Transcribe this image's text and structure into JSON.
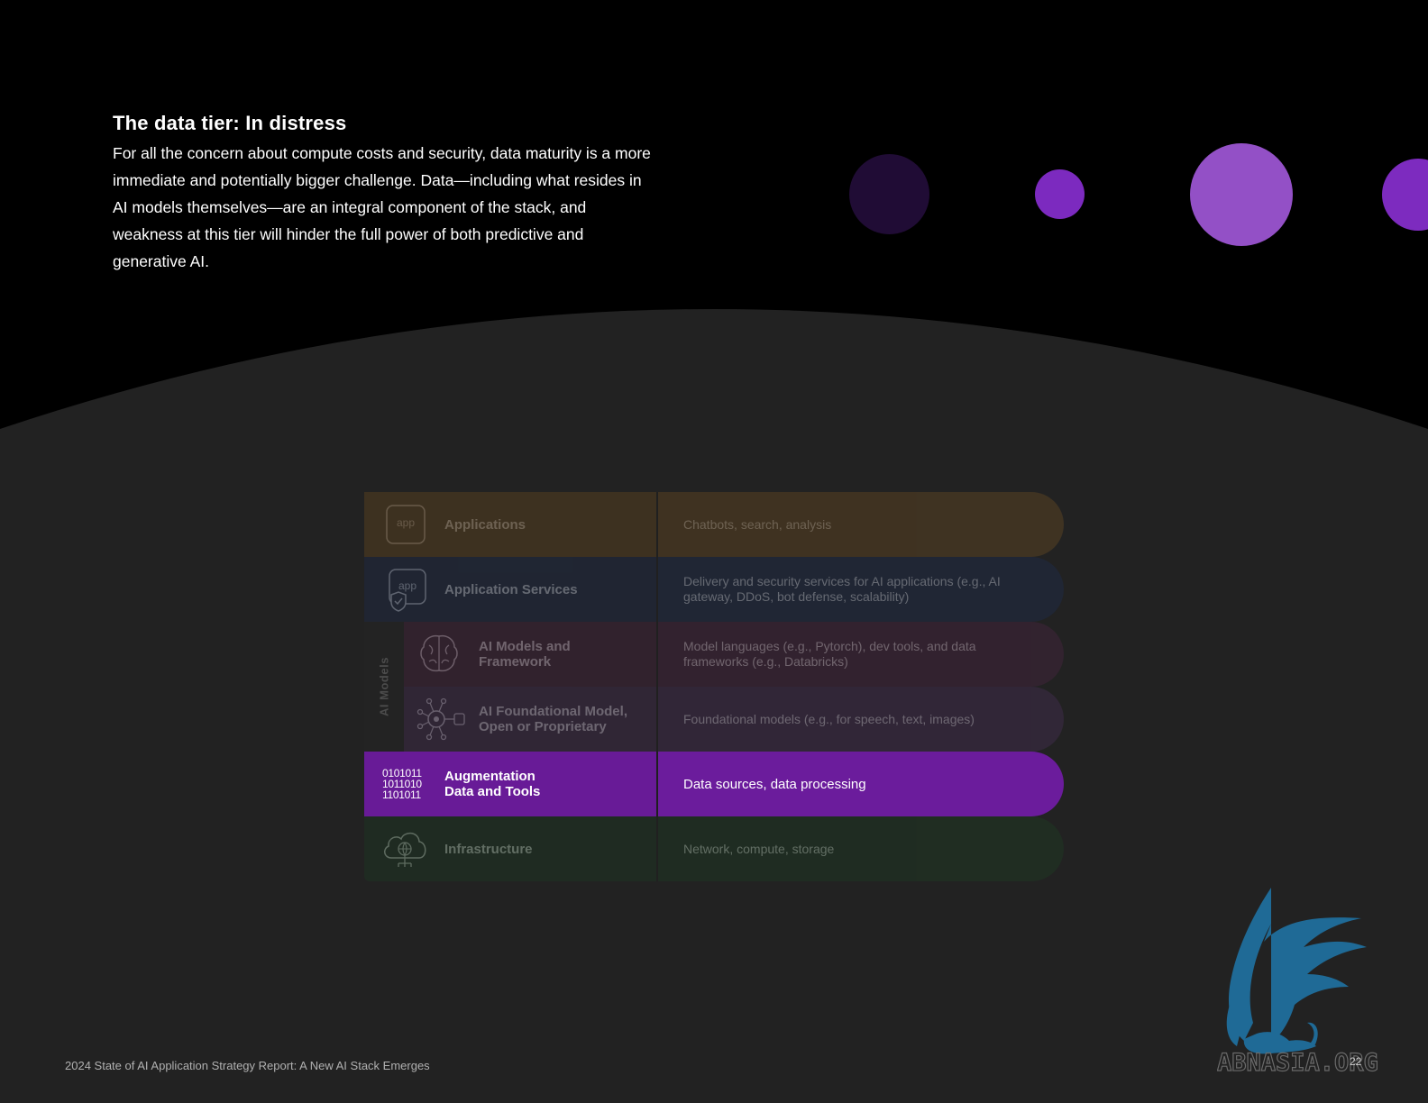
{
  "section": {
    "title": "The data tier: In distress",
    "paragraph": "For all the concern about compute costs and security, data maturity is a more immediate and potentially bigger challenge. Data—including what resides in AI models themselves—are an integral component of the stack, and weakness at this tier will hinder the full power of both predictive and generative AI."
  },
  "stack": {
    "side_label": "AI Models",
    "layers": [
      {
        "label": "Applications",
        "description": "Chatbots, search, analysis",
        "icon": "app-icon",
        "color": "#6a4a1e",
        "right_color": "#6f4e21"
      },
      {
        "label": "Application Services",
        "description": "Delivery and security services for AI applications (e.g., AI gateway, DDoS, bot defense, scalability)",
        "icon": "app-shield-icon",
        "color": "#1d2c4e",
        "right_color": "#1e2e52"
      },
      {
        "label": "AI Models and Framework",
        "description": "Model languages (e.g., Pytorch), dev tools, and data frameworks (e.g., Databricks)",
        "icon": "brain-icon",
        "color": "#4a2341",
        "right_color": "#4d2444"
      },
      {
        "label": "AI Foundational Model, Open or Proprietary",
        "description": "Foundational models (e.g., for speech, text, images)",
        "icon": "neural-network-icon",
        "color": "#472d56",
        "right_color": "#4a2f5a"
      },
      {
        "label": "Augmentation Data and Tools",
        "description": "Data sources, data processing",
        "icon": "binary-data-icon",
        "color": "#681b97",
        "right_color": "#6b1c9c",
        "binary_lines": [
          "0101011",
          "1011010",
          "1101011"
        ]
      },
      {
        "label": "Infrastructure",
        "description": "Network, compute, storage",
        "icon": "cloud-infrastructure-icon",
        "color": "#1b3c22",
        "right_color": "#1c3e23"
      }
    ]
  },
  "footer": {
    "text": "2024 State of AI Application Strategy Report: A New AI Stack Emerges",
    "page": "22"
  },
  "watermark": {
    "text": "ABNASIA.ORG",
    "icon": "griffin-logo"
  },
  "colors": {
    "background_top": "#000000",
    "background_bottom": "#222222",
    "highlight_purple": "#681b97"
  }
}
